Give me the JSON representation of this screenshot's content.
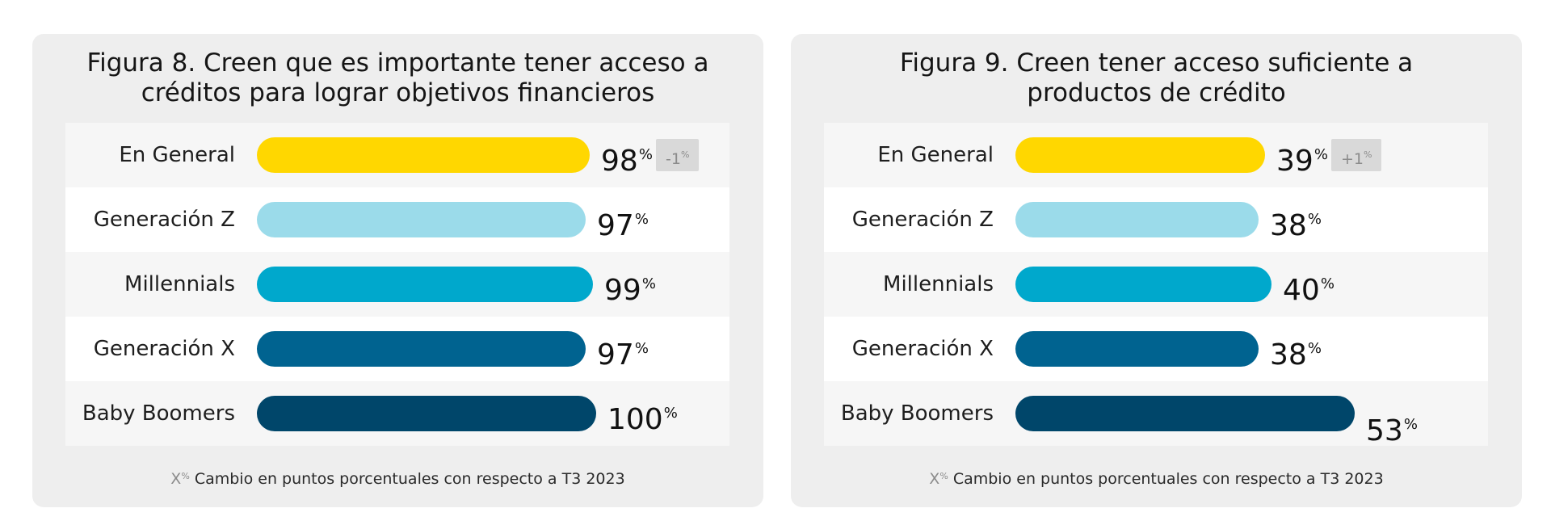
{
  "footnote": {
    "marker": "X",
    "marker_sup": "%",
    "text": "Cambio en puntos porcentuales con respecto a T3 2023"
  },
  "colors": {
    "En General": "#FFD700",
    "Generación Z": "#9BDBEA",
    "Millennials": "#00A8CC",
    "Generación X": "#006390",
    "Baby Boomers": "#00466A",
    "card_background": "#EEEEEE",
    "badge_background": "#D9D9D9"
  },
  "chart_data": [
    {
      "type": "bar",
      "orientation": "horizontal",
      "title": "Figura 8. Creen que es importante tener acceso a créditos para lograr objetivos financieros",
      "title_lines": [
        "Figura 8. Creen que es importante tener acceso a",
        "créditos para lograr objetivos financieros"
      ],
      "categories": [
        "En General",
        "Generación Z",
        "Millennials",
        "Generación X",
        "Baby Boomers"
      ],
      "values": [
        98,
        97,
        99,
        97,
        100
      ],
      "value_labels": [
        "98",
        "97",
        "99",
        "97",
        "100"
      ],
      "value_unit": "%",
      "change": {
        "category": "En General",
        "value": "-1",
        "unit": "%"
      },
      "xlim": [
        0,
        100
      ],
      "grid": false,
      "legend": "none"
    },
    {
      "type": "bar",
      "orientation": "horizontal",
      "title": "Figura 9. Creen tener acceso suficiente a productos de crédito",
      "title_lines": [
        "Figura 9. Creen tener acceso suficiente a",
        "productos de crédito"
      ],
      "categories": [
        "En General",
        "Generación Z",
        "Millennials",
        "Generación X",
        "Baby Boomers"
      ],
      "values": [
        39,
        38,
        40,
        38,
        53
      ],
      "value_labels": [
        "39",
        "38",
        "40",
        "38",
        "53"
      ],
      "value_unit": "%",
      "change": {
        "category": "En General",
        "value": "+1",
        "unit": "%"
      },
      "xlim": [
        0,
        53
      ],
      "grid": false,
      "legend": "none"
    }
  ]
}
